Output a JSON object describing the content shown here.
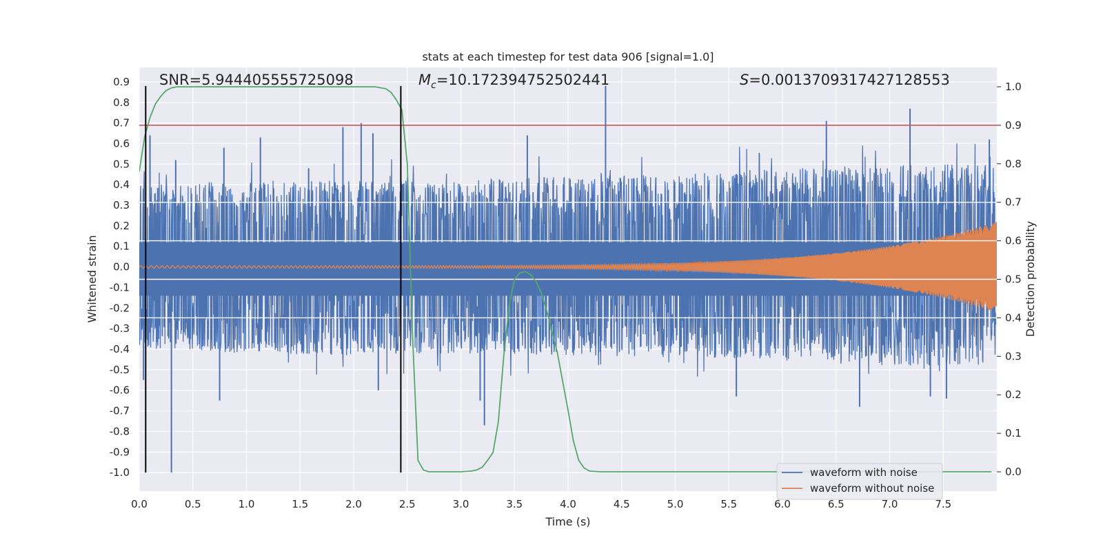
{
  "chart_data": {
    "type": "line",
    "title": "stats at each timestep for test data 906 [signal=1.0]",
    "xlabel": "Time (s)",
    "ylabel": "Whitened strain",
    "y2label": "Detection probability",
    "xlim": [
      0.0,
      8.0
    ],
    "ylim": [
      -1.09,
      0.97
    ],
    "y2lim": [
      -0.05,
      1.05
    ],
    "xticks": [
      "0.0",
      "0.5",
      "1.0",
      "1.5",
      "2.0",
      "2.5",
      "3.0",
      "3.5",
      "4.0",
      "4.5",
      "5.0",
      "5.5",
      "6.0",
      "6.5",
      "7.0",
      "7.5"
    ],
    "yticks": [
      "0.9",
      "0.8",
      "0.7",
      "0.6",
      "0.5",
      "0.4",
      "0.3",
      "0.2",
      "0.1",
      "0.0",
      "-0.1",
      "-0.2",
      "-0.3",
      "-0.4",
      "-0.5",
      "-0.6",
      "-0.7",
      "-0.8",
      "-0.9",
      "-1.0"
    ],
    "y2ticks": [
      "1.0",
      "0.9",
      "0.8",
      "0.7",
      "0.6",
      "0.5",
      "0.4",
      "0.3",
      "0.2",
      "0.1",
      "0.0"
    ],
    "annotations": {
      "snr": "SNR=5.944405555725098",
      "mc_symbol": "M",
      "mc_sub": "c",
      "mc_value": "=10.172394752502441",
      "s_symbol": "S",
      "s_value": "=0.0013709317427128553"
    },
    "vlines": [
      0.06,
      2.44
    ],
    "vline_range": [
      -1.0,
      0.88
    ],
    "hline_probability": 0.9,
    "series": [
      {
        "name": "waveform with noise",
        "color": "#4c72b0",
        "noise_envelope": {
          "x": [
            0.0,
            1.0,
            2.0,
            3.0,
            4.0,
            5.0,
            6.0,
            7.0,
            7.99
          ],
          "upper": [
            0.4,
            0.42,
            0.42,
            0.42,
            0.44,
            0.45,
            0.48,
            0.5,
            0.5
          ],
          "lower": [
            -0.4,
            -0.42,
            -0.43,
            -0.42,
            -0.43,
            -0.44,
            -0.46,
            -0.48,
            -0.48
          ]
        },
        "peaks": [
          [
            0.04,
            -0.55
          ],
          [
            0.1,
            0.64
          ],
          [
            0.3,
            -1.0
          ],
          [
            0.34,
            0.52
          ],
          [
            0.75,
            -0.65
          ],
          [
            0.79,
            0.58
          ],
          [
            1.13,
            0.63
          ],
          [
            1.58,
            0.48
          ],
          [
            1.9,
            0.68
          ],
          [
            2.07,
            0.7
          ],
          [
            2.18,
            0.65
          ],
          [
            2.23,
            -0.6
          ],
          [
            3.18,
            -0.65
          ],
          [
            3.22,
            -0.77
          ],
          [
            3.62,
            0.64
          ],
          [
            4.35,
            0.88
          ],
          [
            5.57,
            -0.63
          ],
          [
            6.41,
            0.71
          ],
          [
            6.72,
            -0.68
          ],
          [
            7.19,
            0.77
          ],
          [
            7.38,
            -0.63
          ],
          [
            7.53,
            -0.64
          ],
          [
            7.93,
            0.62
          ]
        ]
      },
      {
        "name": "waveform without noise",
        "color": "#dd8452",
        "chirp": {
          "x_start": 0.0,
          "x_end": 8.0,
          "f_start_hz": 20,
          "f_end_hz": 150,
          "amp_start": 0.006,
          "amp_end": 0.22
        }
      },
      {
        "name": "detection probability",
        "color": "#55a868",
        "x": [
          0.0,
          0.05,
          0.1,
          0.15,
          0.2,
          0.25,
          0.3,
          0.35,
          0.4,
          0.6,
          1.0,
          1.5,
          2.0,
          2.2,
          2.3,
          2.35,
          2.4,
          2.45,
          2.5,
          2.55,
          2.6,
          2.65,
          2.7,
          2.8,
          2.9,
          3.0,
          3.1,
          3.15,
          3.2,
          3.25,
          3.3,
          3.35,
          3.4,
          3.45,
          3.5,
          3.55,
          3.6,
          3.65,
          3.7,
          3.75,
          3.8,
          3.9,
          4.0,
          4.05,
          4.1,
          4.15,
          4.2,
          4.3,
          4.5,
          5.0,
          6.0,
          7.0,
          7.5,
          7.95
        ],
        "values": [
          0.78,
          0.87,
          0.92,
          0.955,
          0.975,
          0.99,
          0.997,
          1.0,
          1.0,
          1.0,
          1.0,
          1.0,
          1.0,
          1.0,
          0.995,
          0.985,
          0.965,
          0.94,
          0.8,
          0.35,
          0.03,
          0.005,
          0.0,
          0.0,
          0.0,
          0.0,
          0.002,
          0.005,
          0.012,
          0.03,
          0.05,
          0.13,
          0.3,
          0.43,
          0.5,
          0.517,
          0.52,
          0.512,
          0.495,
          0.465,
          0.42,
          0.31,
          0.16,
          0.08,
          0.03,
          0.01,
          0.002,
          0.0,
          0.0,
          0.0,
          0.0,
          0.0,
          0.0,
          0.0
        ]
      }
    ],
    "legend": [
      "waveform with noise",
      "waveform without noise"
    ],
    "legend_loc": "lower-right",
    "colors": {
      "background": "#eaeaf2",
      "grid": "#ffffff",
      "threshold": "#c44e52",
      "vline": "#000000"
    }
  }
}
